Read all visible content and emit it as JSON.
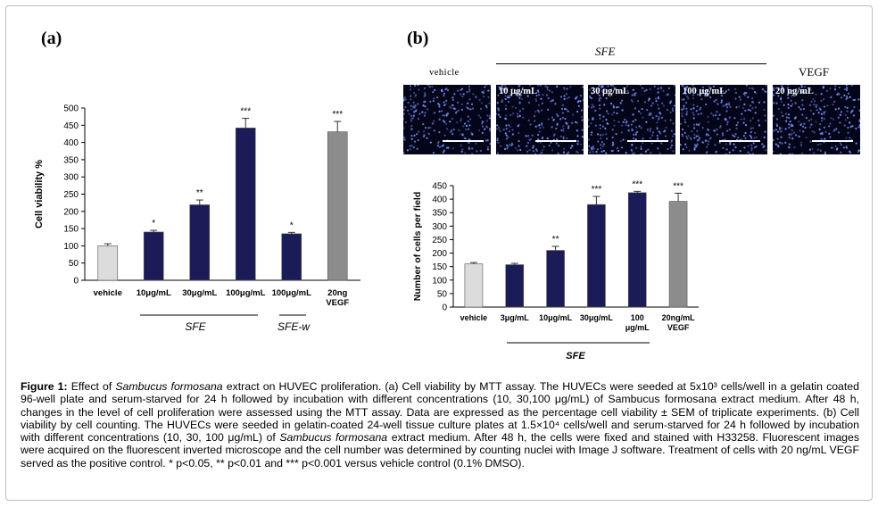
{
  "panel_a": {
    "letter": "(a)",
    "group_labels": {
      "sfe": "SFE",
      "sfe_w": "SFE-w"
    }
  },
  "panel_b": {
    "letter": "(b)",
    "sfe_header": "SFE",
    "vegf_header": "VEGF",
    "group_label": "SFE",
    "images": [
      {
        "label": "vehicle",
        "label_position": "above"
      },
      {
        "label": "10 μg/mL",
        "label_position": "inside"
      },
      {
        "label": "30 μg/mL",
        "label_position": "inside"
      },
      {
        "label": "100 μg/mL",
        "label_position": "inside"
      },
      {
        "label": "20 ng/mL",
        "label_position": "inside"
      }
    ]
  },
  "chart_data": [
    {
      "type": "bar",
      "ylabel": "Cell viability %",
      "xlabel": "",
      "ylim": [
        0,
        500
      ],
      "yticks": [
        0,
        50,
        100,
        150,
        200,
        250,
        300,
        350,
        400,
        450,
        500
      ],
      "categories": [
        "vehicle",
        "10μg/mL",
        "30μg/mL",
        "100μg/mL",
        "100μg/mL",
        "20ng VEGF"
      ],
      "values": [
        100,
        140,
        219,
        442,
        135,
        431
      ],
      "errors": [
        6,
        5,
        14,
        28,
        4,
        30
      ],
      "significance": [
        "",
        "*",
        "**",
        "***",
        "*",
        "***"
      ],
      "bar_colors": [
        "#dcdcdc",
        "#1b1b58",
        "#1b1b58",
        "#1b1b58",
        "#1b1b58",
        "#8c8c8c"
      ],
      "grid": false
    },
    {
      "type": "bar",
      "ylabel": "Number of cells per field",
      "xlabel": "",
      "ylim": [
        0,
        450
      ],
      "yticks": [
        0,
        50,
        100,
        150,
        200,
        250,
        300,
        350,
        400,
        450
      ],
      "categories": [
        "vehicle",
        "3μg/mL",
        "10μg/mL",
        "30μg/mL",
        "100 μg/mL",
        "20ng/mL VEGF"
      ],
      "values": [
        160,
        157,
        210,
        380,
        424,
        392
      ],
      "errors": [
        5,
        5,
        15,
        30,
        5,
        30
      ],
      "significance": [
        "",
        "",
        "**",
        "***",
        "***",
        "***"
      ],
      "bar_colors": [
        "#dcdcdc",
        "#1b1b58",
        "#1b1b58",
        "#1b1b58",
        "#1b1b58",
        "#8c8c8c"
      ],
      "grid": false
    }
  ],
  "caption": {
    "label": "Figure 1:",
    "text_1": " Effect of ",
    "species_1": "Sambucus formosana",
    "text_2": " extract on HUVEC proliferation. (a) Cell viability by MTT assay. The HUVECs were seeded at 5x10³ cells/well in a gelatin coated 96-well plate and serum-starved for 24 h followed by incubation with different concentrations (10, 30,100 μg/mL) of Sambucus formosana extract medium. After 48 h, changes in the level of cell proliferation were assessed using the MTT assay. Data are expressed as the percentage cell viability ± SEM of triplicate experiments. (b) Cell viability by cell counting. The HUVECs were seeded in gelatin-coated 24-well tissue culture plates at 1.5×10⁴ cells/well and serum-starved for 24 h followed by incubation with different concentrations (10, 30, 100 μg/mL) of ",
    "species_2": "Sambucus formosana",
    "text_3": " extract medium. After 48 h, the cells were fixed and stained with H33258. Fluorescent images were acquired on the fluorescent inverted microscope and the cell number was determined by counting nuclei with Image J software. Treatment of cells with 20 ng/mL VEGF served as the positive control. * p<0.05, ** p<0.01 and *** p<0.001 versus vehicle control (0.1% DMSO)."
  }
}
